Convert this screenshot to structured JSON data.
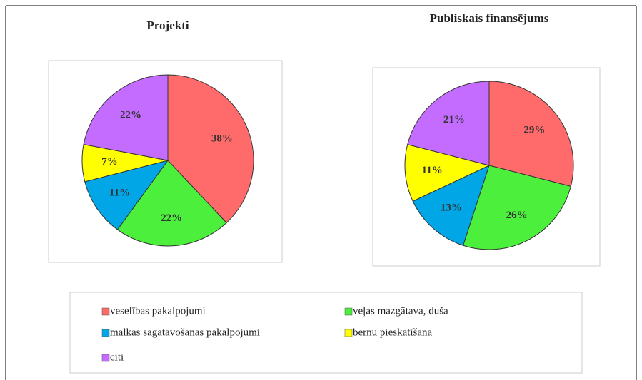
{
  "chart_data": [
    {
      "type": "pie",
      "title": "Projekti",
      "categories": [
        "veselības pakalpojumi",
        "veļas mazgātava, duša",
        "malkas sagatavošanas pakalpojumi",
        "bērnu pieskatīšana",
        "citi"
      ],
      "values": [
        38,
        22,
        11,
        7,
        22
      ],
      "value_labels": [
        "38%",
        "22%",
        "11%",
        "7%",
        "22%"
      ],
      "colors": [
        "#ff6b6b",
        "#4cf03c",
        "#00a6e6",
        "#ffff00",
        "#c46cff"
      ]
    },
    {
      "type": "pie",
      "title": "Publiskais finansējums",
      "values": [
        29,
        26,
        13,
        11,
        21
      ],
      "value_labels": [
        "29%",
        "26%",
        "13%",
        "11%",
        "21%"
      ]
    }
  ]
}
